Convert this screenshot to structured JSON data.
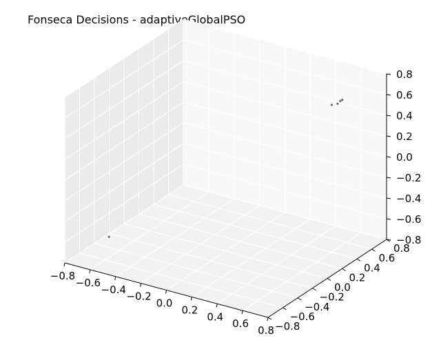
{
  "chart_data": {
    "type": "scatter3d",
    "title": "Fonseca Decisions - adaptiveGlobalPSO",
    "xlabel": "",
    "ylabel": "",
    "zlabel": "",
    "grid": true,
    "xlim": [
      -0.8,
      0.8
    ],
    "ylim": [
      -0.8,
      0.8
    ],
    "zlim": [
      -0.8,
      0.8
    ],
    "x_ticks": [
      "−0.8",
      "−0.6",
      "−0.4",
      "−0.2",
      "0.0",
      "0.2",
      "0.4",
      "0.6",
      "0.8"
    ],
    "y_ticks": [
      "−0.8",
      "−0.6",
      "−0.4",
      "−0.2",
      "0.0",
      "0.2",
      "0.4",
      "0.6",
      "0.8"
    ],
    "z_ticks": [
      "−0.8",
      "−0.6",
      "−0.4",
      "−0.2",
      "0.0",
      "0.2",
      "0.4",
      "0.6",
      "0.8"
    ],
    "tick_values": [
      -0.8,
      -0.6,
      -0.4,
      -0.2,
      0.0,
      0.2,
      0.4,
      0.6,
      0.8
    ],
    "points": [
      {
        "x": -0.58,
        "y": -0.58,
        "z": -0.58
      },
      {
        "x": 0.57,
        "y": 0.57,
        "z": 0.57
      },
      {
        "x": 0.58,
        "y": 0.58,
        "z": 0.58
      },
      {
        "x": 0.56,
        "y": 0.55,
        "z": 0.55
      },
      {
        "x": 0.52,
        "y": 0.54,
        "z": 0.53
      }
    ],
    "marker_color": "#555555",
    "pane_colors": [
      "#ebebeb",
      "#f2f2f2",
      "#f7f7f7"
    ],
    "grid_color": "#ffffff"
  }
}
